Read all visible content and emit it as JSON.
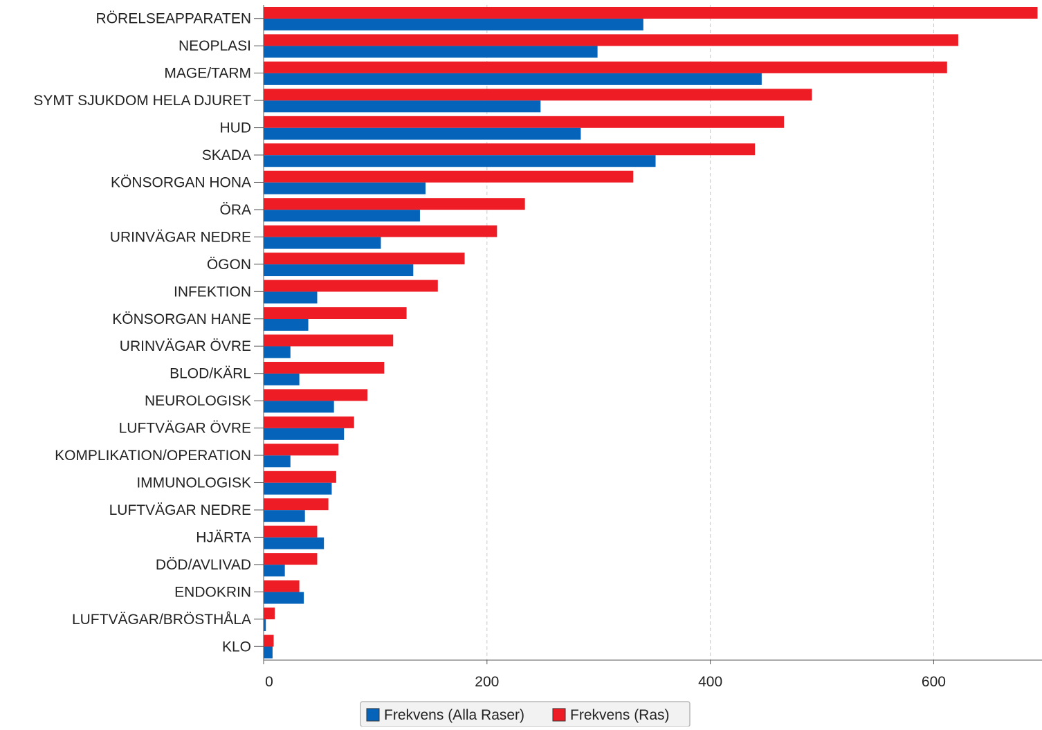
{
  "chart_data": {
    "type": "bar",
    "orientation": "horizontal",
    "categories": [
      "RÖRELSEAPPARATEN",
      "NEOPLASI",
      "MAGE/TARM",
      "SYMT SJUKDOM HELA DJURET",
      "HUD",
      "SKADA",
      "KÖNSORGAN HONA",
      "ÖRA",
      "URINVÄGAR NEDRE",
      "ÖGON",
      "INFEKTION",
      "KÖNSORGAN HANE",
      "URINVÄGAR ÖVRE",
      "BLOD/KÄRL",
      "NEUROLOGISK",
      "LUFTVÄGAR ÖVRE",
      "KOMPLIKATION/OPERATION",
      "IMMUNOLOGISK",
      "LUFTVÄGAR NEDRE",
      "HJÄRTA",
      "DÖD/AVLIVAD",
      "ENDOKRIN",
      "LUFTVÄGAR/BRÖSTHÅLA",
      "KLO"
    ],
    "series": [
      {
        "name": "Frekvens (Ras)",
        "color": "#ee1c25",
        "values": [
          693,
          622,
          612,
          491,
          466,
          440,
          331,
          234,
          209,
          180,
          156,
          128,
          116,
          108,
          93,
          81,
          67,
          65,
          58,
          48,
          48,
          32,
          10,
          9
        ]
      },
      {
        "name": "Frekvens (Alla Raser)",
        "color": "#0563b9",
        "values": [
          340,
          299,
          446,
          248,
          284,
          351,
          145,
          140,
          105,
          134,
          48,
          40,
          24,
          32,
          63,
          72,
          24,
          61,
          37,
          54,
          19,
          36,
          2,
          8
        ]
      }
    ],
    "xlim": [
      0,
      697
    ],
    "xticks": [
      "0",
      "200",
      "400",
      "600"
    ],
    "grid": true,
    "legend": {
      "placement": "bottom-center",
      "items": [
        "Frekvens (Alla Raser)",
        "Frekvens (Ras)"
      ]
    }
  }
}
